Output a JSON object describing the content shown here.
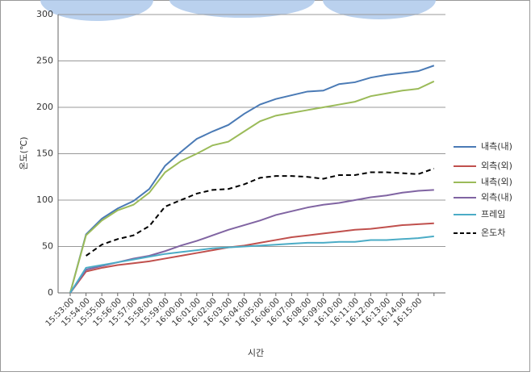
{
  "chart_data": {
    "type": "line",
    "y_label": "온도(℃)",
    "x_label": "시간",
    "categories": [
      "15:53:00",
      "15:54:00",
      "15:55:00",
      "15:56:00",
      "15:57:00",
      "15:58:00",
      "15:59:00",
      "16:00:00",
      "16:01:00",
      "16:02:00",
      "16:03:00",
      "16:04:00",
      "16:05:00",
      "16:06:00",
      "16:07:00",
      "16:08:00",
      "16:09:00",
      "16:10:00",
      "16:11:00",
      "16:12:00",
      "16:13:00",
      "16:14:00",
      "16:15:00",
      null
    ],
    "ylim": [
      0,
      300
    ],
    "yticks": [
      0,
      50,
      100,
      150,
      200,
      250,
      300
    ],
    "grid": true,
    "legend": "right",
    "series": [
      {
        "name": "내측(내)",
        "color": "#4a7ab5",
        "values": [
          0,
          63,
          80,
          91,
          99,
          112,
          137,
          152,
          166,
          174,
          181,
          193,
          203,
          209,
          213,
          217,
          218,
          225,
          227,
          232,
          235,
          237,
          239,
          245
        ]
      },
      {
        "name": "외측(외)",
        "color": "#c0504d",
        "values": [
          0,
          23,
          27,
          30,
          32,
          34,
          37,
          40,
          43,
          46,
          49,
          51,
          54,
          57,
          60,
          62,
          64,
          66,
          68,
          69,
          71,
          73,
          74,
          75
        ]
      },
      {
        "name": "내측(외)",
        "color": "#9bbb59",
        "values": [
          0,
          62,
          78,
          89,
          95,
          108,
          130,
          142,
          150,
          159,
          163,
          174,
          185,
          191,
          194,
          197,
          200,
          203,
          206,
          212,
          215,
          218,
          220,
          228
        ]
      },
      {
        "name": "외측(내)",
        "color": "#8064a2",
        "values": [
          0,
          25,
          29,
          33,
          37,
          40,
          45,
          51,
          56,
          62,
          68,
          73,
          78,
          84,
          88,
          92,
          95,
          97,
          100,
          103,
          105,
          108,
          110,
          111
        ]
      },
      {
        "name": "프레임",
        "color": "#4bacc6",
        "values": [
          0,
          27,
          30,
          33,
          36,
          39,
          42,
          44,
          46,
          48,
          49,
          50,
          51,
          52,
          53,
          54,
          54,
          55,
          55,
          57,
          57,
          58,
          59,
          61
        ]
      },
      {
        "name": "온도차",
        "color": "#000000",
        "dashed": true,
        "values": [
          null,
          40,
          52,
          58,
          62,
          72,
          93,
          100,
          107,
          111,
          112,
          117,
          124,
          126,
          126,
          125,
          123,
          127,
          127,
          130,
          130,
          129,
          128,
          134
        ]
      }
    ]
  }
}
